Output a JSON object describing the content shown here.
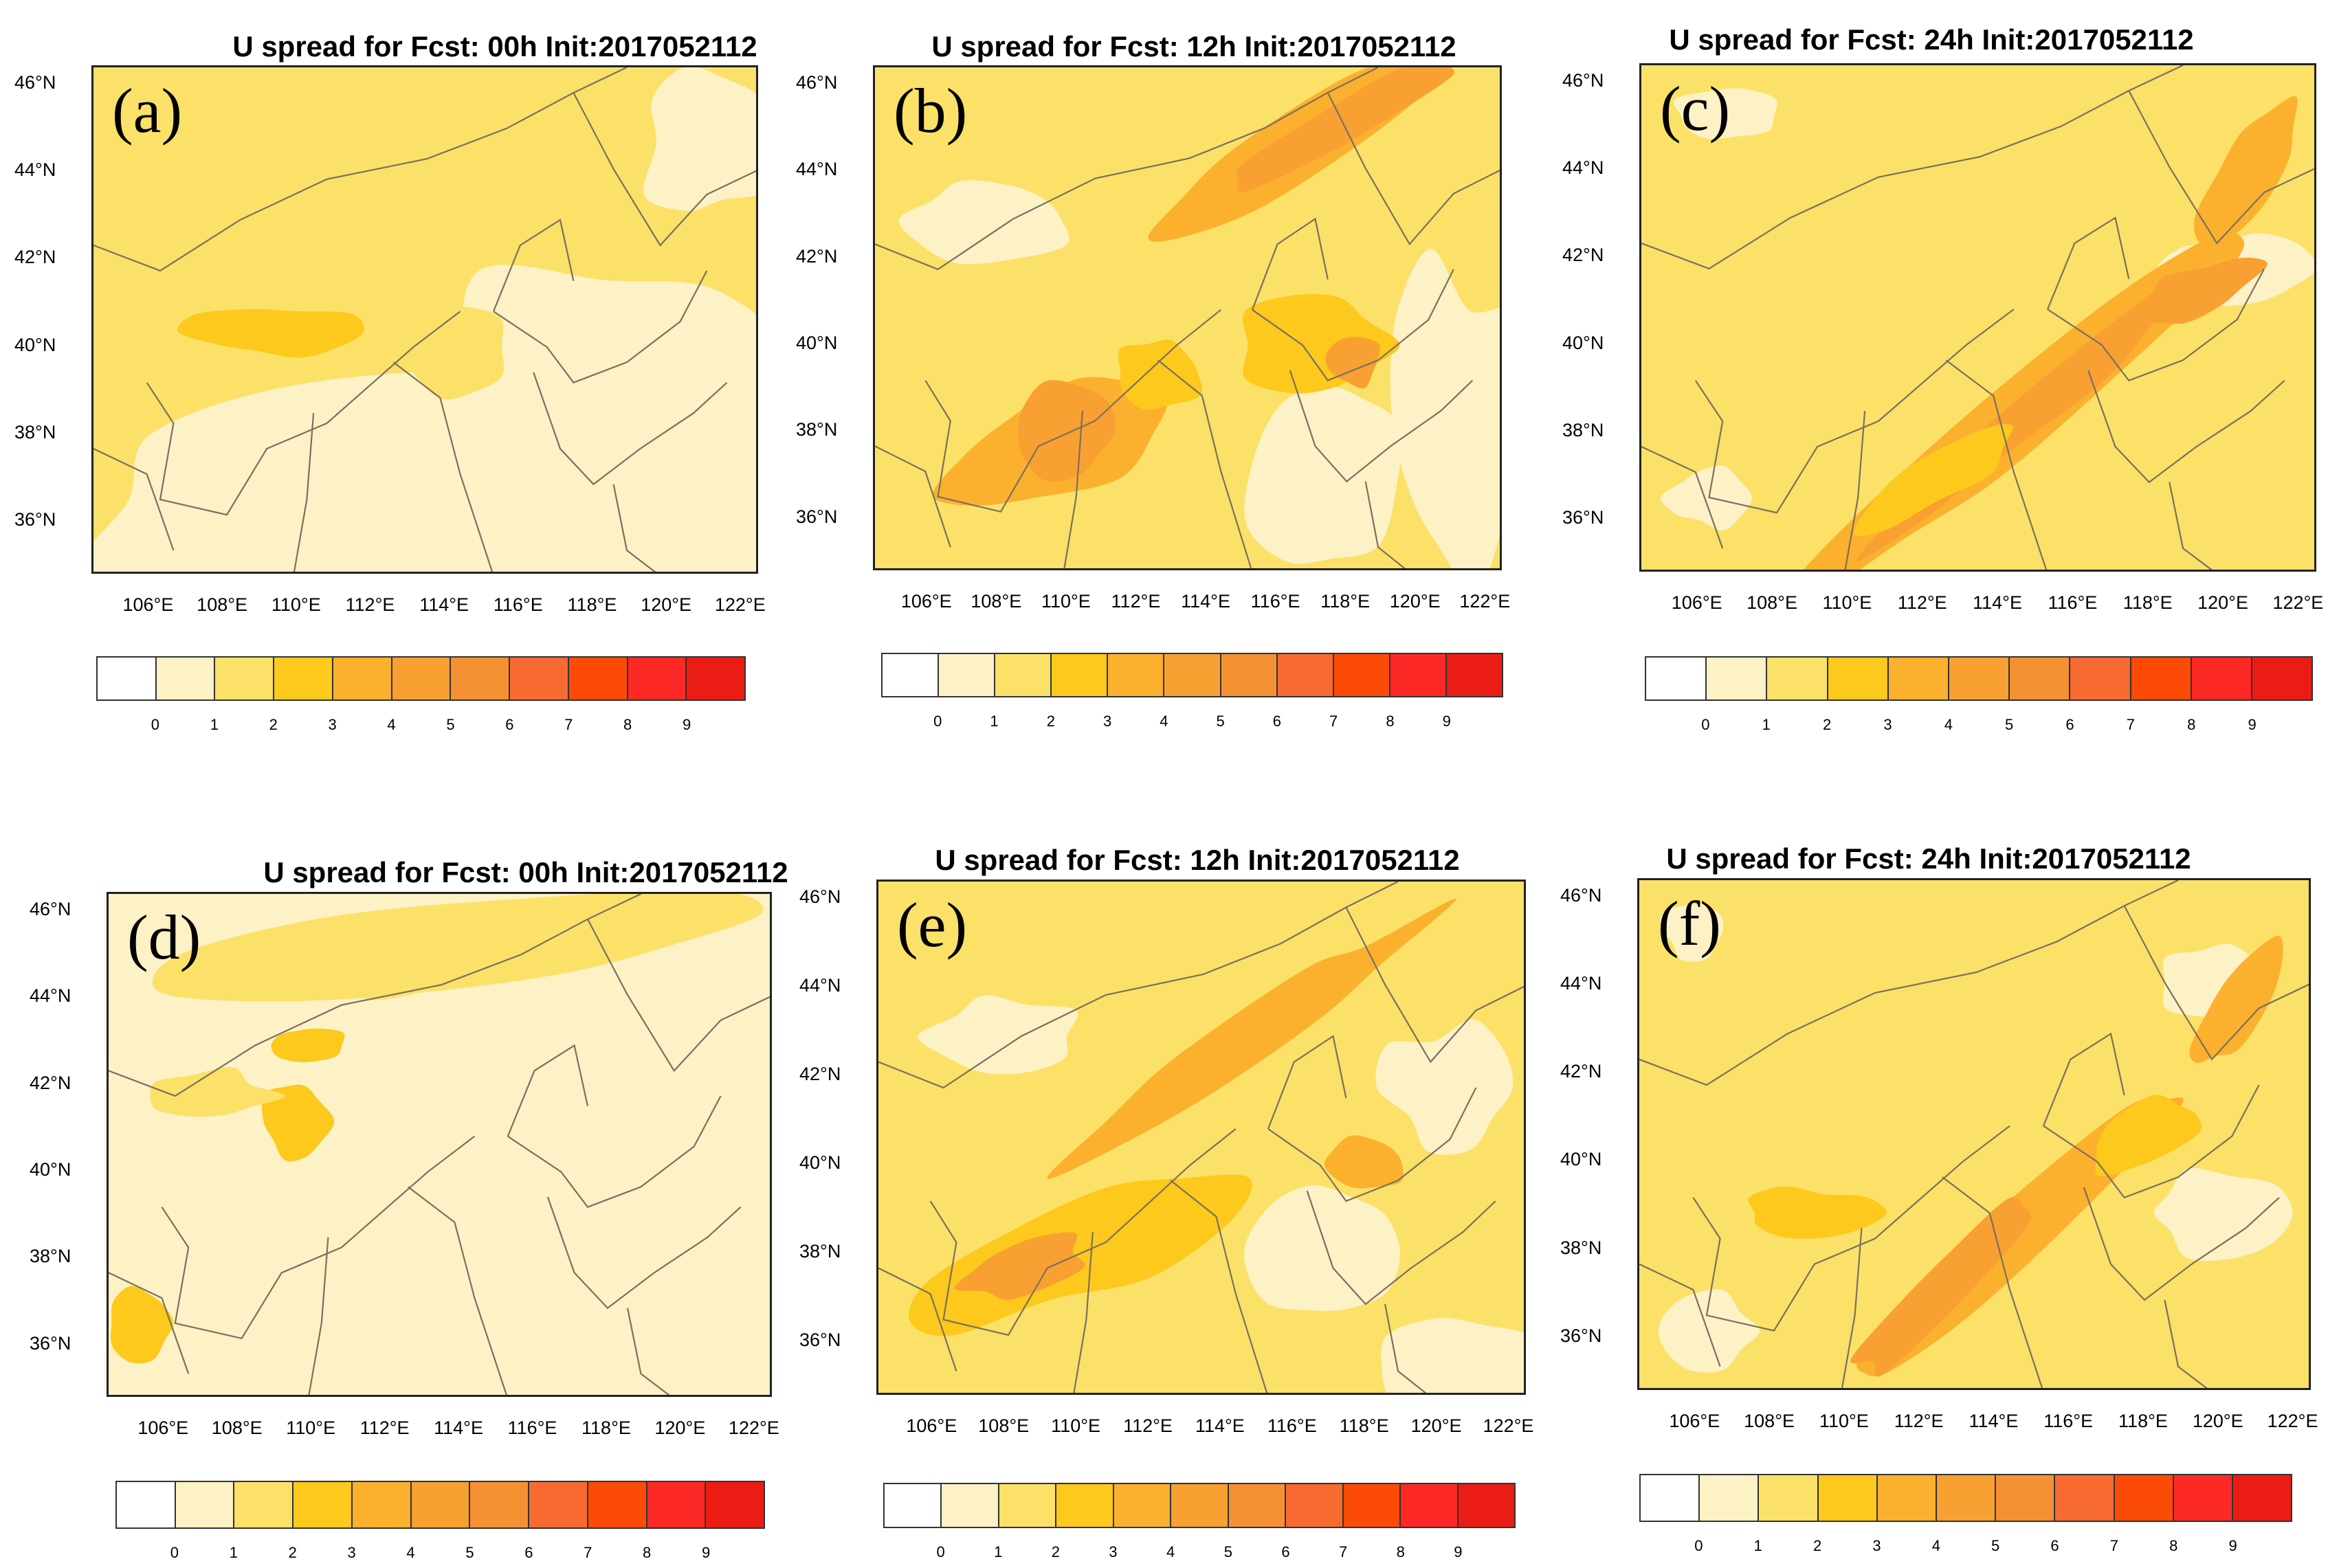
{
  "figure": {
    "colorbar_ticks": [
      "0",
      "1",
      "2",
      "3",
      "4",
      "5",
      "6",
      "7",
      "8",
      "9"
    ],
    "colorbar_colors": [
      "#ffffff",
      "#fdf1c6",
      "#fbe167",
      "#fcc91c",
      "#fbb12e",
      "#f8a032",
      "#f69133",
      "#f76a30",
      "#fb4b07",
      "#fd2926",
      "#ea1c14"
    ],
    "lat_labels": [
      "46°N",
      "44°N",
      "42°N",
      "40°N",
      "38°N",
      "36°N"
    ],
    "lon_labels": [
      "106°E",
      "108°E",
      "110°E",
      "112°E",
      "114°E",
      "116°E",
      "118°E",
      "120°E",
      "122°E"
    ],
    "boundary_color": "#7a7060"
  },
  "panels": [
    {
      "label": "(a)",
      "title": "U spread for Fcst: 00h Init:2017052112",
      "base_level": 2
    },
    {
      "label": "(b)",
      "title": "U spread for Fcst: 12h Init:2017052112",
      "base_level": 2
    },
    {
      "label": "(c)",
      "title": "U spread for Fcst: 24h Init:2017052112",
      "base_level": 2
    },
    {
      "label": "(d)",
      "title": "U spread for Fcst: 00h Init:2017052112",
      "base_level": 1
    },
    {
      "label": "(e)",
      "title": "U spread for Fcst: 12h Init:2017052112",
      "base_level": 2
    },
    {
      "label": "(f)",
      "title": "U spread for Fcst: 24h Init:2017052112",
      "base_level": 2
    }
  ]
}
